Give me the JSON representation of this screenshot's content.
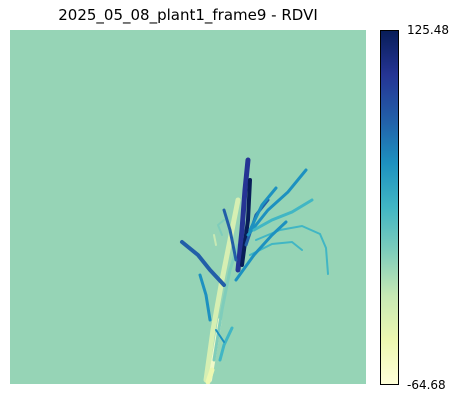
{
  "title": "2025_05_08_plant1_frame9 - RDVI",
  "image": {
    "subject": "plant1 frame9 RDVI index map",
    "background_color": "#96d4b6"
  },
  "colorbar": {
    "max_label": "125.48",
    "min_label": "-64.68",
    "colormap": [
      "#ffffd9",
      "#edf8b1",
      "#c7e9b4",
      "#7fcdbb",
      "#41b6c4",
      "#1d91c0",
      "#225ea8",
      "#253494",
      "#081d58"
    ]
  }
}
